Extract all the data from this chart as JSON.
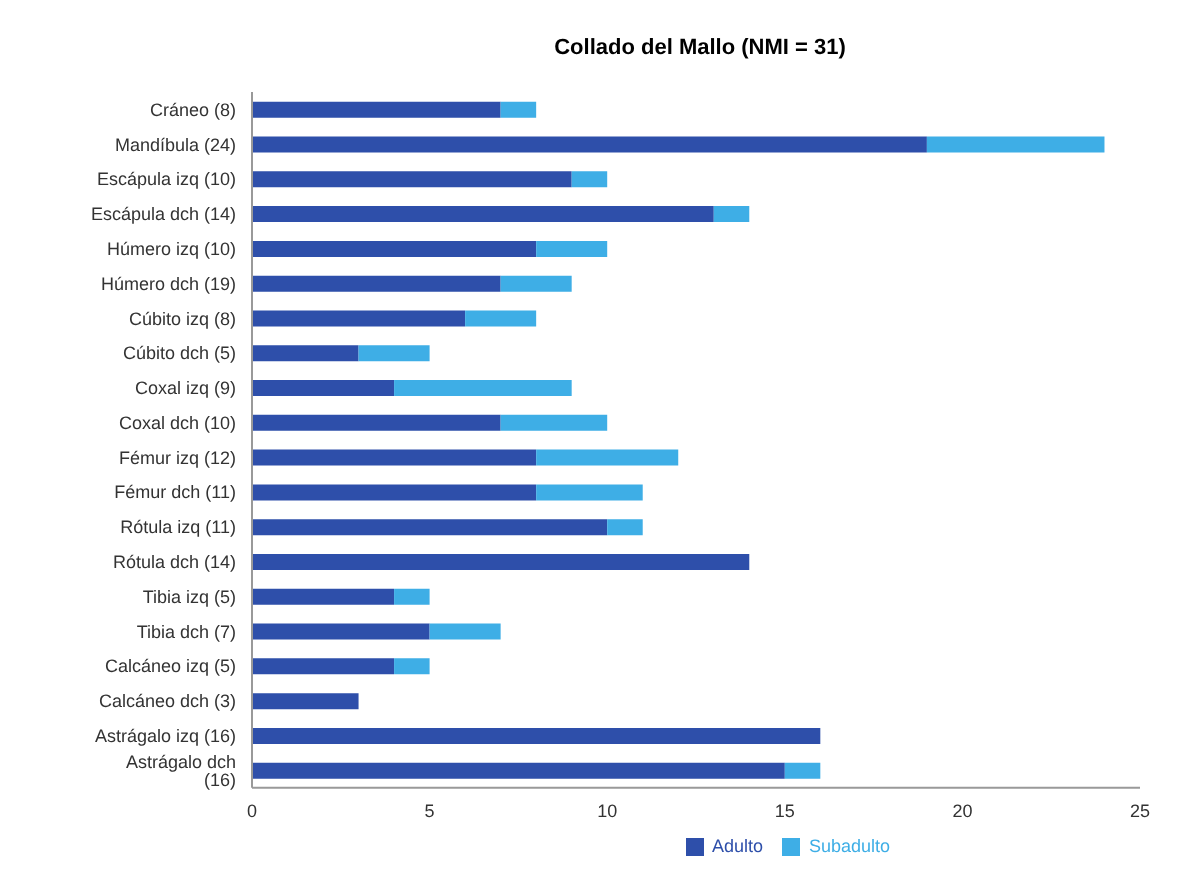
{
  "chart_data": {
    "type": "bar",
    "orientation": "horizontal",
    "stacked": true,
    "title": "Collado del Mallo (NMI = 31)",
    "categories": [
      "Cráneo (8)",
      "Mandíbula (24)",
      "Escápula izq (10)",
      "Escápula dch (14)",
      "Húmero izq (10)",
      "Húmero dch (19)",
      "Cúbito izq (8)",
      "Cúbito dch (5)",
      "Coxal izq (9)",
      "Coxal dch (10)",
      "Fémur izq (12)",
      "Fémur dch (11)",
      "Rótula izq (11)",
      "Rótula dch (14)",
      "Tibia izq (5)",
      "Tibia dch (7)",
      "Calcáneo izq (5)",
      "Calcáneo dch (3)",
      "Astrágalo izq (16)",
      "Astrágalo dch (16)"
    ],
    "series": [
      {
        "name": "Adulto",
        "color": "#2e4faa",
        "values": [
          7,
          19,
          9,
          13,
          8,
          7,
          6,
          3,
          4,
          7,
          8,
          8,
          10,
          14,
          4,
          5,
          4,
          3,
          16,
          15
        ]
      },
      {
        "name": "Subadulto",
        "color": "#3eaee6",
        "values": [
          1,
          5,
          1,
          1,
          2,
          2,
          2,
          2,
          5,
          3,
          4,
          3,
          1,
          0,
          1,
          2,
          1,
          0,
          0,
          1
        ]
      }
    ],
    "xlim": [
      0,
      25
    ],
    "xticks": [
      0,
      5,
      10,
      15,
      20,
      25
    ],
    "grid": false,
    "legend": "bottom"
  }
}
